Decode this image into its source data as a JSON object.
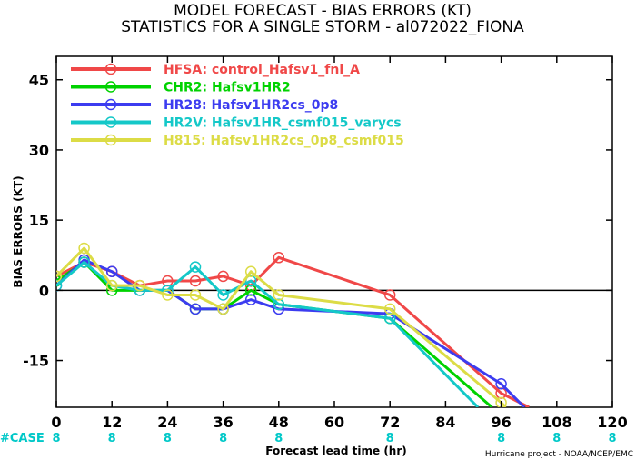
{
  "title_line1": "MODEL FORECAST - BIAS ERRORS (KT)",
  "title_line2": "STATISTICS FOR A SINGLE STORM - al072022_FIONA",
  "credit": "Hurricane project - NOAA/NCEP/EMC",
  "case_label": "#CASE",
  "case_color": "#00c8c8",
  "chart_data": {
    "type": "line",
    "xlabel": "Forecast lead time (hr)",
    "ylabel": "BIAS ERRORS (KT)",
    "xlim": [
      0,
      120
    ],
    "ylim": [
      -25,
      50
    ],
    "xticks": [
      0,
      12,
      24,
      36,
      48,
      60,
      72,
      84,
      96,
      108,
      120
    ],
    "yticks": [
      -15,
      0,
      15,
      30,
      45
    ],
    "zero_line": true,
    "case_counts": [
      {
        "x": 0,
        "n": "8"
      },
      {
        "x": 12,
        "n": "8"
      },
      {
        "x": 24,
        "n": "8"
      },
      {
        "x": 36,
        "n": "8"
      },
      {
        "x": 48,
        "n": "8"
      },
      {
        "x": 72,
        "n": "8"
      },
      {
        "x": 96,
        "n": "8"
      },
      {
        "x": 108,
        "n": "8"
      },
      {
        "x": 120,
        "n": "8"
      }
    ],
    "legend_position": "top-left",
    "series": [
      {
        "name": "HFSA:",
        "desc": "control_Hafsv1_fnl_A",
        "color": "#f04848",
        "x": [
          0,
          6,
          12,
          18,
          24,
          30,
          36,
          42,
          48,
          72,
          96,
          102
        ],
        "y": [
          3,
          6,
          4,
          1,
          2,
          2,
          3,
          1,
          7,
          -1,
          -22,
          -25
        ]
      },
      {
        "name": "CHR2:",
        "desc": "Hafsv1HR2",
        "color": "#00d200",
        "x": [
          0,
          6,
          12,
          18,
          24,
          30,
          36,
          42,
          48,
          72,
          94
        ],
        "y": [
          2,
          6,
          0,
          0,
          0,
          -4,
          -4,
          0,
          -3,
          -6,
          -25
        ]
      },
      {
        "name": "HR28:",
        "desc": "Hafsv1HR2cs_0p8",
        "color": "#3c3cf0",
        "x": [
          0,
          6,
          12,
          18,
          24,
          30,
          36,
          42,
          48,
          72,
          96,
          101
        ],
        "y": [
          1,
          6.5,
          4,
          0,
          0,
          -4,
          -4,
          -2,
          -4,
          -5,
          -20,
          -25
        ]
      },
      {
        "name": "HR2V:",
        "desc": "Hafsv1HR_csmf015_varycs",
        "color": "#14c8c8",
        "x": [
          0,
          6,
          12,
          18,
          24,
          30,
          36,
          42,
          48,
          72,
          91
        ],
        "y": [
          1,
          6,
          1,
          0,
          0,
          5,
          -1,
          2,
          -3,
          -6,
          -25
        ]
      },
      {
        "name": "H815:",
        "desc": "Hafsv1HR2cs_0p8_csmf015",
        "color": "#dcdc46",
        "x": [
          0,
          6,
          12,
          18,
          24,
          30,
          36,
          42,
          48,
          72,
          96,
          97
        ],
        "y": [
          3,
          9,
          1,
          1,
          -1,
          -1,
          -4,
          4,
          -1,
          -4,
          -24,
          -25
        ]
      }
    ]
  }
}
